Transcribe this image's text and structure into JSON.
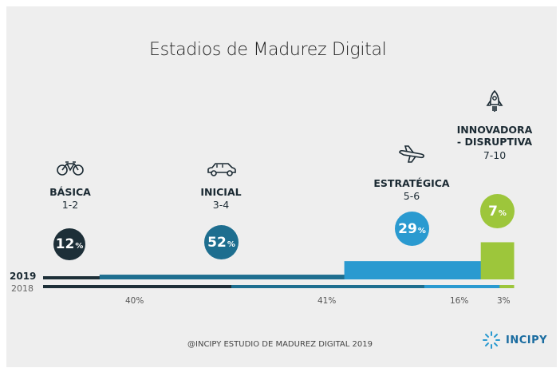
{
  "chart_data": {
    "type": "bar",
    "title": "Estadios de Madurez Digital",
    "categories": [
      "BÁSICA",
      "INICIAL",
      "ESTRATÉGICA",
      "INNOVADORA - DISRUPTIVA"
    ],
    "ranges": [
      "1-2",
      "3-4",
      "5-6",
      "7-10"
    ],
    "series": [
      {
        "name": "2019",
        "values": [
          12,
          52,
          29,
          7
        ],
        "labels": [
          "12",
          "52",
          "29",
          "7"
        ]
      },
      {
        "name": "2018",
        "values": [
          40,
          41,
          16,
          3
        ],
        "labels": [
          "40%",
          "41%",
          "16%",
          "3%"
        ]
      }
    ],
    "unit": "%",
    "colors": [
      "#1d2f38",
      "#1e6e8f",
      "#2a9ad0",
      "#9dc63b"
    ],
    "icons": [
      "bicycle-icon",
      "car-icon",
      "airplane-icon",
      "rocket-icon"
    ]
  },
  "footer": "@INCIPY ESTUDIO DE MADUREZ DIGITAL 2019",
  "brand": "INCIPY"
}
